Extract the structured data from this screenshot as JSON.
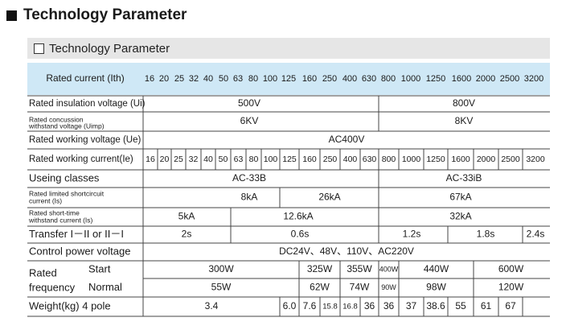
{
  "title": "Technology Parameter",
  "subtitle": "Technology Parameter",
  "colors": {
    "header_band": "#cfe8f6",
    "subtitle_band": "#e6e6e6",
    "grid": "#444444"
  },
  "ratings": [
    "16",
    "20",
    "25",
    "32",
    "40",
    "50",
    "63",
    "80",
    "100",
    "125",
    "160",
    "250",
    "400",
    "630",
    "800",
    "1000",
    "1250",
    "1600",
    "2000",
    "2500",
    "3200"
  ],
  "rows": {
    "rated_current": {
      "label": "Rated current (Ith)"
    },
    "insulation": {
      "label": "Rated insulation voltage (Ui)",
      "left": "500V",
      "right": "800V"
    },
    "concussion": {
      "label_line1": "Rated concussion",
      "label_line2": "withstand voltage (Uimp)",
      "left": "6KV",
      "right": "8KV"
    },
    "working_voltage": {
      "label": "Rated working voltage (Ue)",
      "value": "AC400V"
    },
    "working_current": {
      "label": "Rated working current(Ie)"
    },
    "using_classes": {
      "label": "Useing classes",
      "left": "AC-33B",
      "right": "AC-33iB"
    },
    "limited_short": {
      "label_line1": "Rated limited shortcircuit",
      "label_line2": "current (Is)",
      "a": "8kA",
      "b": "26kA",
      "c": "67kA"
    },
    "short_time": {
      "label_line1": "Rated short-time",
      "label_line2": "withstand current (Is)",
      "a": "5kA",
      "b": "12.6kA",
      "c": "32kA"
    },
    "transfer": {
      "label": "Transfer I－II or II－I",
      "a": "2s",
      "b": "0.6s",
      "c": "1.2s",
      "d": "1.8s",
      "e": "2.4s"
    },
    "control": {
      "label": "Control power voltage",
      "value": "DC24V、48V、110V、AC220V"
    },
    "frequency": {
      "label_line1": "Rated",
      "label_line2": "frequency",
      "start_label": "Start",
      "normal_label": "Normal",
      "start_values": [
        "300W",
        "325W",
        "355W",
        "400W",
        "440W",
        "600W"
      ],
      "normal_values": [
        "55W",
        "62W",
        "74W",
        "90W",
        "98W",
        "120W"
      ]
    },
    "weight": {
      "label": "Weight(kg) 4 pole",
      "values": [
        "3.4",
        "6.0",
        "6.0",
        "7.6",
        "15.8",
        "16.8",
        "36",
        "36",
        "37",
        "38.6",
        "55",
        "61",
        "67"
      ]
    }
  }
}
